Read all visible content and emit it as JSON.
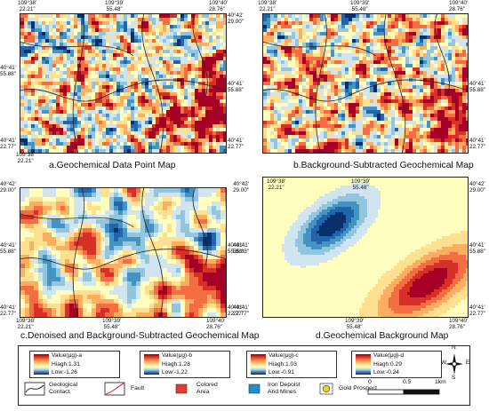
{
  "coords": {
    "lon": [
      "109°38'\n22.21\"",
      "109°39'\n55.48\"",
      "109°40'\n28.76\""
    ],
    "lat": [
      "40°42'\n29.00\"",
      "40°41'\n55.88\"",
      "40°41'\n22.77\""
    ]
  },
  "panels": [
    {
      "id": "a",
      "caption": "a.Geochemical Data Point Map",
      "kind": "noisy"
    },
    {
      "id": "b",
      "caption": "b.Background-Subtracted Geochemical Map",
      "kind": "noisy"
    },
    {
      "id": "c",
      "caption": "c.Denoised and Background-Subtracted Geochemical Map",
      "kind": "denoised"
    },
    {
      "id": "d",
      "caption": "d.Geochemical Background Map",
      "kind": "background"
    }
  ],
  "legend": {
    "scales": [
      {
        "title": "Value(μg)-a",
        "high": "Hiagh:1.31",
        "low": "Low:-1.26"
      },
      {
        "title": "Value(μg)-b",
        "high": "Hiagh:1.28",
        "low": "Low:-1.22"
      },
      {
        "title": "Value(μg)-c",
        "high": "Hiagh:1.03",
        "low": "Low:-0.91"
      },
      {
        "title": "Value(μg)-d",
        "high": "Hiagh:0.29",
        "low": "Low:-0.24"
      }
    ],
    "keys": {
      "contact": "Geological\nContact",
      "fault": "Fault",
      "colored": "Colored\nArea",
      "iron": "Iron Depoist\nAnd Mines",
      "gold": "Gold Prospect"
    },
    "scale_bar": {
      "labels": [
        "0",
        "0.5",
        "1km"
      ]
    },
    "north": {
      "n": "N",
      "s": "S",
      "e": "E",
      "w": "W"
    },
    "colors": {
      "high": "#8b0000",
      "mid": "#ffff99",
      "low": "#08306b",
      "colored_area": "#e8382f",
      "iron": "#1f8fd1",
      "gold": "#f4d21a",
      "fault": "#e02020"
    }
  }
}
